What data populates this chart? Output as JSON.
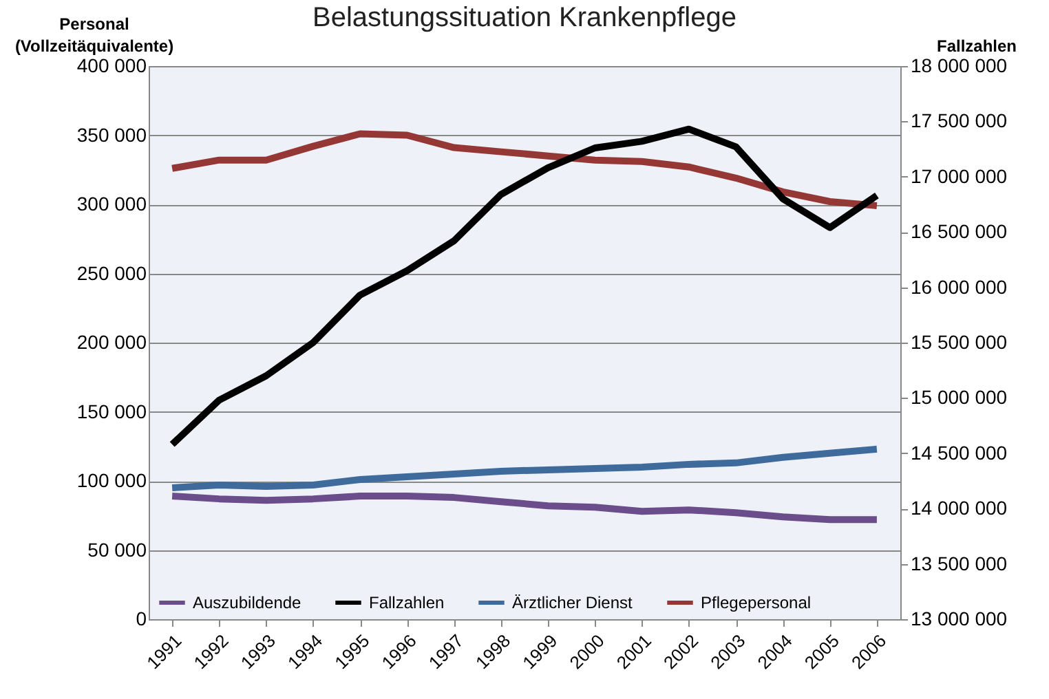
{
  "chart_data": {
    "type": "line",
    "title": "Belastungssituation Krankenpflege",
    "ylabel": "Personal (Vollzeitäquivalente)",
    "y2label": "Fallzahlen",
    "categories": [
      "1991",
      "1992",
      "1993",
      "1994",
      "1995",
      "1996",
      "1997",
      "1998",
      "1999",
      "2000",
      "2001",
      "2002",
      "2003",
      "2004",
      "2005",
      "2006"
    ],
    "series": [
      {
        "name": "Auszubildende",
        "color": "#6a4d8a",
        "values": [
          89000,
          87000,
          86000,
          87000,
          89000,
          89000,
          88000,
          85000,
          82000,
          81000,
          78000,
          79000,
          77000,
          74000,
          72000,
          72000
        ]
      },
      {
        "name": "Fallzahlen",
        "color": "#000000",
        "axis": "y2",
        "values": [
          14580000,
          14980000,
          15200000,
          15500000,
          15930000,
          16150000,
          16420000,
          16840000,
          17080000,
          17260000,
          17320000,
          17430000,
          17270000,
          16800000,
          16540000,
          16830000
        ]
      },
      {
        "name": "Ärztlicher Dienst",
        "color": "#3f6b9c",
        "values": [
          95000,
          97000,
          96000,
          97000,
          101000,
          103000,
          105000,
          107000,
          108000,
          109000,
          110000,
          112000,
          113000,
          117000,
          120000,
          123000
        ]
      },
      {
        "name": "Pflegepersonal",
        "color": "#953735",
        "values": [
          326000,
          332000,
          332000,
          342000,
          351000,
          350000,
          341000,
          338000,
          335000,
          332000,
          331000,
          327000,
          319000,
          309000,
          302000,
          299000
        ]
      }
    ],
    "ylim": [
      0,
      400000
    ],
    "yticks": [
      0,
      {
        "value": 50000,
        "label": "50 000"
      },
      {
        "value": 100000,
        "label": "100 000"
      },
      {
        "value": 150000,
        "label": "150 000"
      },
      {
        "value": 200000,
        "label": "200 000"
      },
      {
        "value": 250000,
        "label": "250 000"
      },
      {
        "value": 300000,
        "label": "300 000"
      },
      {
        "value": 350000,
        "label": "350 000"
      },
      {
        "value": 400000,
        "label": "400 000"
      }
    ],
    "y2lim": [
      13000000,
      18000000
    ],
    "y2ticks": [
      {
        "value": 13000000,
        "label": "13 000 000"
      },
      {
        "value": 13500000,
        "label": "13 500 000"
      },
      {
        "value": 14000000,
        "label": "14 000 000"
      },
      {
        "value": 14500000,
        "label": "14 500 000"
      },
      {
        "value": 15000000,
        "label": "15 000 000"
      },
      {
        "value": 15500000,
        "label": "15 500 000"
      },
      {
        "value": 16000000,
        "label": "16 000 000"
      },
      {
        "value": 16500000,
        "label": "16 500 000"
      },
      {
        "value": 17000000,
        "label": "17 000 000"
      },
      {
        "value": 17500000,
        "label": "17 500 000"
      },
      {
        "value": 18000000,
        "label": "18 000 000"
      }
    ],
    "grid": "y",
    "legend": "bottom"
  }
}
